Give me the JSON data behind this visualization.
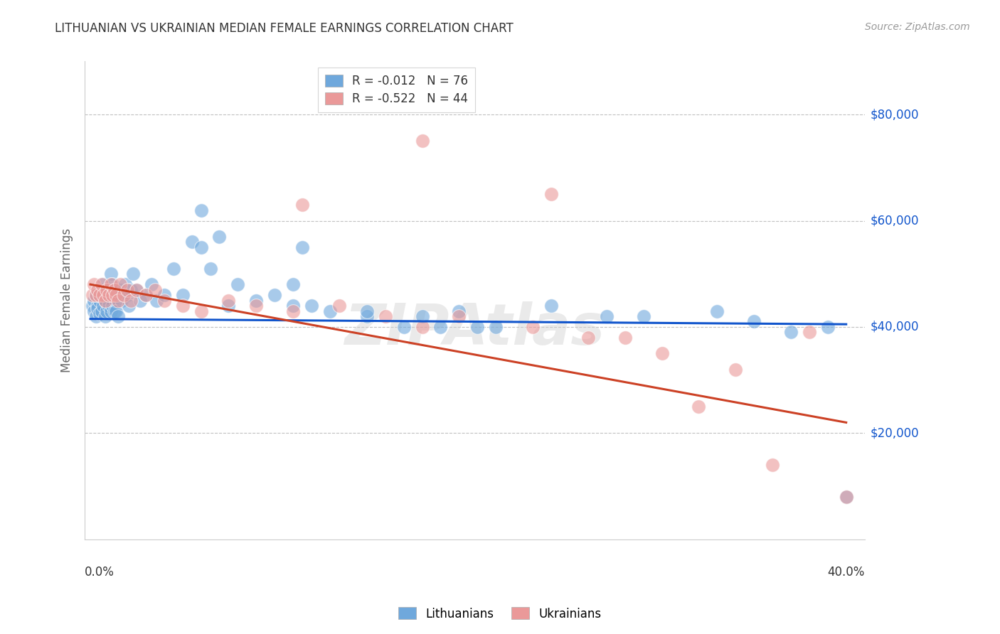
{
  "title": "LITHUANIAN VS UKRAINIAN MEDIAN FEMALE EARNINGS CORRELATION CHART",
  "source": "Source: ZipAtlas.com",
  "ylabel": "Median Female Earnings",
  "ytick_labels": [
    "$20,000",
    "$40,000",
    "$60,000",
    "$80,000"
  ],
  "ytick_values": [
    20000,
    40000,
    60000,
    80000
  ],
  "ylim": [
    0,
    90000
  ],
  "xlim": [
    -0.003,
    0.42
  ],
  "legend_label1": "Lithuanians",
  "legend_label2": "Ukrainians",
  "color_blue": "#6fa8dc",
  "color_pink": "#ea9999",
  "color_trendline_blue": "#1155cc",
  "color_trendline_pink": "#cc4125",
  "color_ylabel": "#666666",
  "color_yticks": "#1155cc",
  "color_title": "#333333",
  "color_source": "#999999",
  "background": "#ffffff",
  "watermark": "ZIPAtlas",
  "watermark_color": "#cccccc",
  "blue_x": [
    0.001,
    0.002,
    0.002,
    0.003,
    0.003,
    0.004,
    0.004,
    0.005,
    0.005,
    0.005,
    0.006,
    0.006,
    0.007,
    0.007,
    0.008,
    0.008,
    0.009,
    0.009,
    0.01,
    0.01,
    0.011,
    0.011,
    0.012,
    0.012,
    0.013,
    0.013,
    0.014,
    0.014,
    0.015,
    0.015,
    0.016,
    0.017,
    0.018,
    0.019,
    0.02,
    0.021,
    0.022,
    0.023,
    0.025,
    0.027,
    0.03,
    0.033,
    0.036,
    0.04,
    0.045,
    0.05,
    0.055,
    0.06,
    0.065,
    0.07,
    0.08,
    0.09,
    0.1,
    0.11,
    0.12,
    0.13,
    0.15,
    0.17,
    0.19,
    0.21,
    0.06,
    0.075,
    0.11,
    0.115,
    0.15,
    0.18,
    0.2,
    0.22,
    0.25,
    0.28,
    0.3,
    0.34,
    0.36,
    0.38,
    0.4,
    0.41
  ],
  "blue_y": [
    44000,
    45000,
    43000,
    46000,
    42000,
    44000,
    43500,
    45000,
    46000,
    42500,
    47000,
    43000,
    48000,
    44000,
    45000,
    42000,
    47000,
    43000,
    46000,
    44000,
    50000,
    43000,
    48000,
    44000,
    47000,
    43000,
    45000,
    43000,
    46000,
    42000,
    47000,
    45000,
    46000,
    48000,
    46000,
    44000,
    47000,
    50000,
    47000,
    45000,
    46000,
    48000,
    45000,
    46000,
    51000,
    46000,
    56000,
    62000,
    51000,
    57000,
    48000,
    45000,
    46000,
    48000,
    44000,
    43000,
    42000,
    40000,
    40000,
    40000,
    55000,
    44000,
    44000,
    55000,
    43000,
    42000,
    43000,
    40000,
    44000,
    42000,
    42000,
    43000,
    41000,
    39000,
    40000,
    8000
  ],
  "pink_x": [
    0.001,
    0.002,
    0.003,
    0.004,
    0.005,
    0.006,
    0.007,
    0.008,
    0.009,
    0.01,
    0.011,
    0.012,
    0.013,
    0.014,
    0.015,
    0.016,
    0.018,
    0.02,
    0.022,
    0.025,
    0.03,
    0.035,
    0.04,
    0.05,
    0.06,
    0.075,
    0.09,
    0.11,
    0.135,
    0.16,
    0.18,
    0.2,
    0.24,
    0.27,
    0.31,
    0.35,
    0.39,
    0.115,
    0.18,
    0.25,
    0.29,
    0.33,
    0.37,
    0.41
  ],
  "pink_y": [
    46000,
    48000,
    46000,
    47000,
    46000,
    48000,
    46000,
    45000,
    47000,
    46000,
    48000,
    46000,
    47000,
    46000,
    45000,
    48000,
    46000,
    47000,
    45000,
    47000,
    46000,
    47000,
    45000,
    44000,
    43000,
    45000,
    44000,
    43000,
    44000,
    42000,
    40000,
    42000,
    40000,
    38000,
    35000,
    32000,
    39000,
    63000,
    75000,
    65000,
    38000,
    25000,
    14000,
    8000
  ],
  "blue_trendline_x": [
    0.0,
    0.41
  ],
  "blue_trendline_y": [
    41500,
    40500
  ],
  "pink_trendline_x": [
    0.0,
    0.41
  ],
  "pink_trendline_y": [
    48000,
    22000
  ]
}
